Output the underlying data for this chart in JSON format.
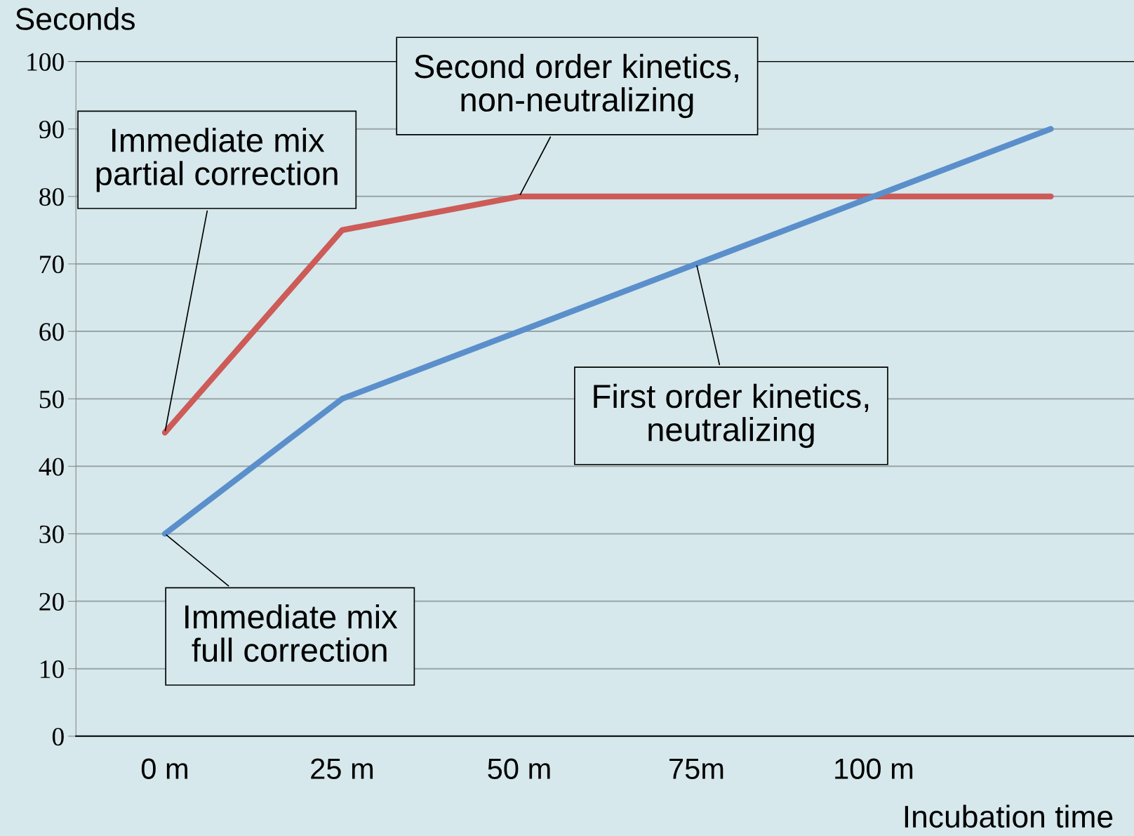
{
  "chart_data": {
    "type": "line",
    "ylabel": "Seconds",
    "xlabel": "Incubation time",
    "categories": [
      "0 m",
      "25 m",
      "50 m",
      "75m",
      "100 m",
      null
    ],
    "series": [
      {
        "color": "#cd5b57",
        "values": [
          45,
          75,
          80,
          80,
          80,
          80
        ]
      },
      {
        "color": "#5b8fcb",
        "values": [
          30,
          50,
          60,
          70,
          80,
          90
        ]
      }
    ],
    "ylim": [
      0,
      100
    ],
    "yticks": [
      0,
      10,
      20,
      30,
      40,
      50,
      60,
      70,
      80,
      90,
      100
    ],
    "grid": "y",
    "legend": false,
    "marker": "none",
    "line_style": "solid",
    "annotations": [
      {
        "text": "Immediate mix\npartial correction",
        "x": "0 m",
        "y": 45
      },
      {
        "text": "Second order kinetics,\nnon-neutralizing",
        "x": "50 m",
        "y": 80
      },
      {
        "text": "First order kinetics,\nneutralizing",
        "x": "75m",
        "y": 70
      },
      {
        "text": "Immediate mix\nfull correction",
        "x": "0 m",
        "y": 30
      }
    ]
  }
}
